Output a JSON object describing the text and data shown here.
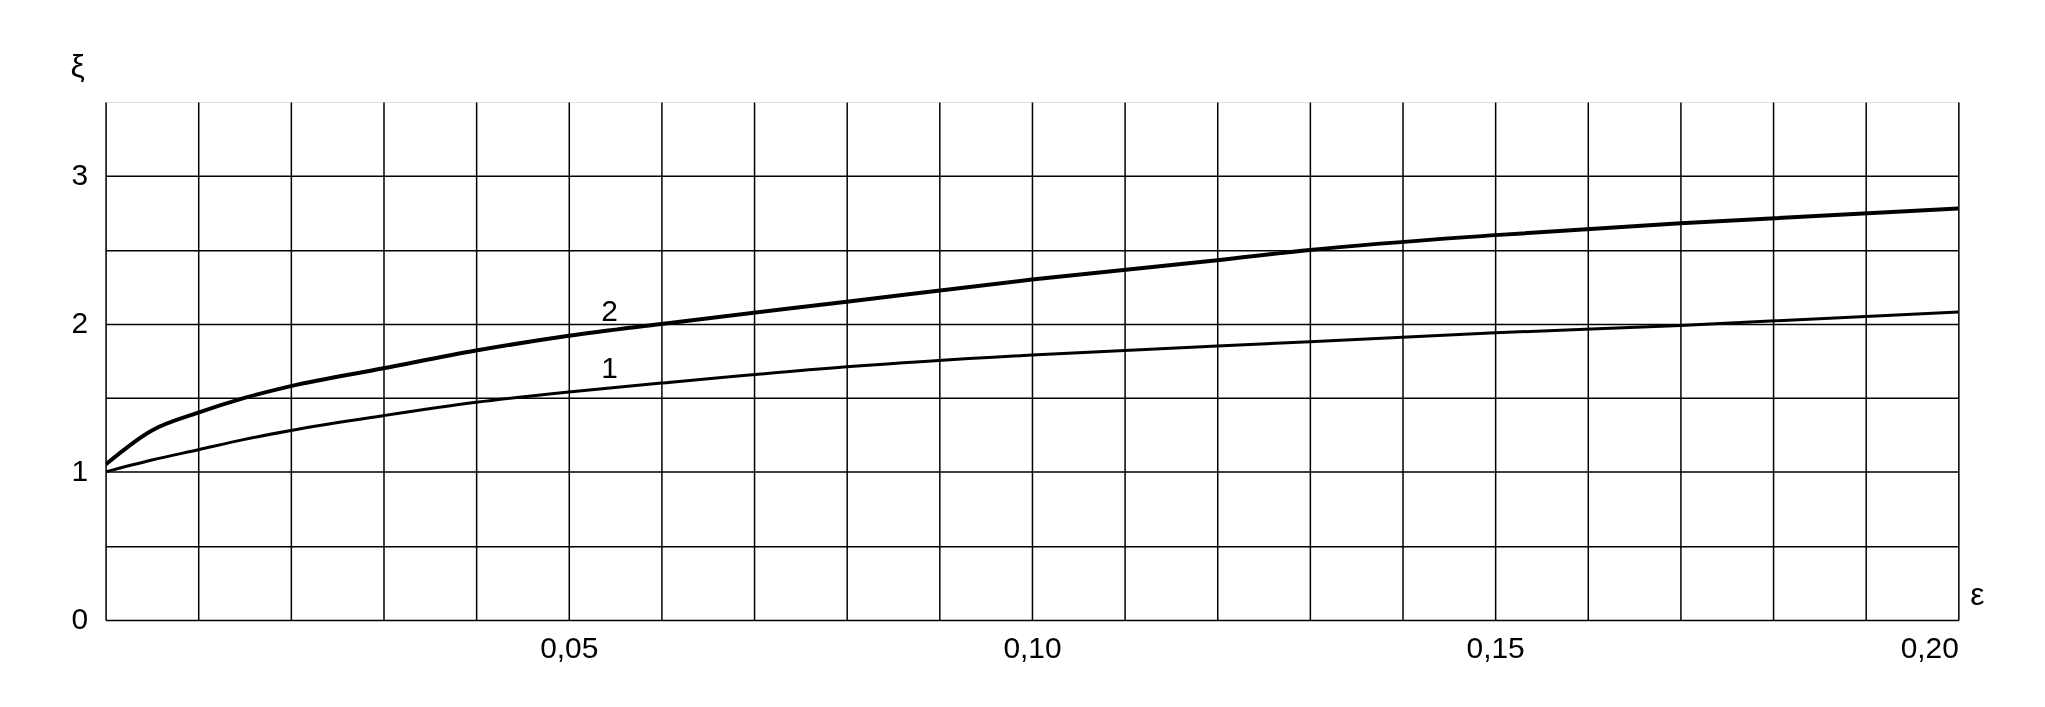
{
  "chart_data": {
    "type": "line",
    "xlabel": "ε",
    "ylabel": "ξ",
    "x": [
      0,
      0.005,
      0.01,
      0.015,
      0.02,
      0.03,
      0.04,
      0.05,
      0.06,
      0.08,
      0.1,
      0.12,
      0.13,
      0.15,
      0.17,
      0.2
    ],
    "series": [
      {
        "color": "#000000",
        "values": [
          1.0,
          1.08,
          1.15,
          1.22,
          1.28,
          1.38,
          1.47,
          1.54,
          1.6,
          1.71,
          1.79,
          1.85,
          1.88,
          1.94,
          1.99,
          2.08
        ]
      },
      {
        "color": "#000000",
        "values": [
          1.05,
          1.28,
          1.4,
          1.5,
          1.58,
          1.7,
          1.82,
          1.92,
          2.0,
          2.15,
          2.3,
          2.43,
          2.5,
          2.6,
          2.68,
          2.78
        ]
      }
    ],
    "annotations": [
      {
        "text": "1",
        "x": 0.052,
        "y": 1.55
      },
      {
        "text": "2",
        "x": 0.052,
        "y": 1.93
      }
    ],
    "xlim": [
      0,
      0.2
    ],
    "ylim": [
      0,
      3.5
    ],
    "xticks": [
      {
        "value": 0,
        "label": null
      },
      {
        "value": 0.01,
        "label": null
      },
      {
        "value": 0.02,
        "label": null
      },
      {
        "value": 0.03,
        "label": null
      },
      {
        "value": 0.04,
        "label": null
      },
      {
        "value": 0.05,
        "label": "0,05"
      },
      {
        "value": 0.06,
        "label": null
      },
      {
        "value": 0.07,
        "label": null
      },
      {
        "value": 0.08,
        "label": null
      },
      {
        "value": 0.09,
        "label": null
      },
      {
        "value": 0.1,
        "label": "0,10"
      },
      {
        "value": 0.11,
        "label": null
      },
      {
        "value": 0.12,
        "label": null
      },
      {
        "value": 0.13,
        "label": null
      },
      {
        "value": 0.14,
        "label": null
      },
      {
        "value": 0.15,
        "label": "0,15"
      },
      {
        "value": 0.16,
        "label": null
      },
      {
        "value": 0.17,
        "label": null
      },
      {
        "value": 0.18,
        "label": null
      },
      {
        "value": 0.19,
        "label": null
      },
      {
        "value": 0.2,
        "label": "0,20"
      }
    ],
    "yticks": [
      0,
      {
        "value": 0.5,
        "label": null
      },
      1,
      {
        "value": 1.5,
        "label": null
      },
      2,
      {
        "value": 2.5,
        "label": null
      },
      3
    ],
    "grid": true,
    "marker": "none",
    "line_style": "solid"
  }
}
